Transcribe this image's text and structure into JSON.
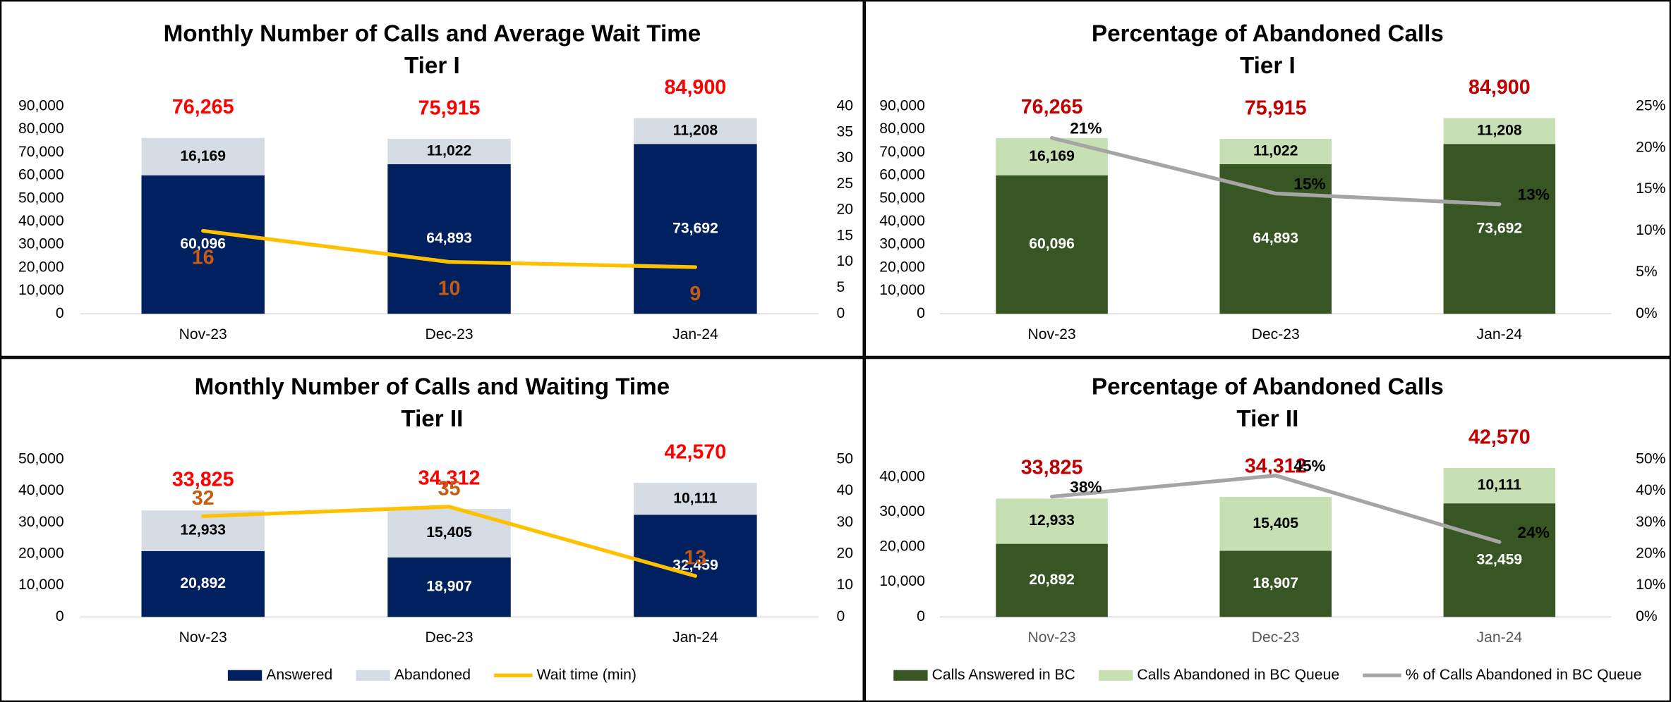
{
  "chart_data": [
    {
      "type": "bar",
      "stacked": true,
      "title": "Monthly Number of Calls and Average Wait Time",
      "subtitle": "Tier I",
      "categories": [
        "Nov-23",
        "Dec-23",
        "Jan-24"
      ],
      "series": [
        {
          "name": "Answered",
          "type": "bar",
          "color": "#002060",
          "label_color": "#ffffff",
          "values": [
            60096,
            64893,
            73692
          ],
          "value_labels": [
            "60,096",
            "64,893",
            "73,692"
          ]
        },
        {
          "name": "Abandoned",
          "type": "bar",
          "color": "#d6dce4",
          "label_color": "#000000",
          "values": [
            16169,
            11022,
            11208
          ],
          "value_labels": [
            "16,169",
            "11,022",
            "11,208"
          ]
        },
        {
          "name": "Wait time (min)",
          "type": "line",
          "axis": "y2",
          "color": "#ffc000",
          "label_color": "#c55a11",
          "values": [
            16,
            10,
            9
          ]
        }
      ],
      "totals": {
        "values": [
          76265,
          75915,
          84900
        ],
        "value_labels": [
          "76,265",
          "75,915",
          "84,900"
        ],
        "color": "#ff0000"
      },
      "ylim": [
        0,
        90000
      ],
      "yticks": [
        0,
        {
          "value": 10000,
          "label": "10,000"
        },
        {
          "value": 20000,
          "label": "20,000"
        },
        {
          "value": 30000,
          "label": "30,000"
        },
        {
          "value": 40000,
          "label": "40,000"
        },
        {
          "value": 50000,
          "label": "50,000"
        },
        {
          "value": 60000,
          "label": "60,000"
        },
        {
          "value": 70000,
          "label": "70,000"
        },
        {
          "value": 80000,
          "label": "80,000"
        },
        {
          "value": 90000,
          "label": "90,000"
        }
      ],
      "y2lim": [
        0,
        40
      ],
      "y2ticks": [
        0,
        5,
        10,
        15,
        20,
        25,
        30,
        35,
        40
      ],
      "legend": false
    },
    {
      "type": "bar",
      "stacked": true,
      "title": "Percentage of Abandoned Calls",
      "subtitle": "Tier I",
      "categories": [
        "Nov-23",
        "Dec-23",
        "Jan-24"
      ],
      "series": [
        {
          "name": "Calls Answered in BC",
          "type": "bar",
          "color": "#375623",
          "label_color": "#ffffff",
          "values": [
            60096,
            64893,
            73692
          ],
          "value_labels": [
            "60,096",
            "64,893",
            "73,692"
          ]
        },
        {
          "name": "Calls Abandoned in BC Queue",
          "type": "bar",
          "color": "#c6e0b4",
          "label_color": "#000000",
          "values": [
            16169,
            11022,
            11208
          ],
          "value_labels": [
            "16,169",
            "11,022",
            "11,208"
          ]
        },
        {
          "name": "% of Calls Abandoned in BC Queue",
          "type": "line",
          "axis": "y2",
          "color": "#a5a5a5",
          "label_color": "#000000",
          "values": [
            21.2,
            14.5,
            13.2
          ],
          "value_labels": [
            "21%",
            "15%",
            "13%"
          ]
        }
      ],
      "totals": {
        "values": [
          76265,
          75915,
          84900
        ],
        "value_labels": [
          "76,265",
          "75,915",
          "84,900"
        ],
        "color": "#c00000"
      },
      "ylim": [
        0,
        90000
      ],
      "yticks": [
        0,
        {
          "value": 10000,
          "label": "10,000"
        },
        {
          "value": 20000,
          "label": "20,000"
        },
        {
          "value": 30000,
          "label": "30,000"
        },
        {
          "value": 40000,
          "label": "40,000"
        },
        {
          "value": 50000,
          "label": "50,000"
        },
        {
          "value": 60000,
          "label": "60,000"
        },
        {
          "value": 70000,
          "label": "70,000"
        },
        {
          "value": 80000,
          "label": "80,000"
        },
        {
          "value": 90000,
          "label": "90,000"
        }
      ],
      "y2lim": [
        0,
        25
      ],
      "y2ticks": [
        {
          "value": 0,
          "label": "0%"
        },
        {
          "value": 5,
          "label": "5%"
        },
        {
          "value": 10,
          "label": "10%"
        },
        {
          "value": 15,
          "label": "15%"
        },
        {
          "value": 20,
          "label": "20%"
        },
        {
          "value": 25,
          "label": "25%"
        }
      ],
      "legend": false
    },
    {
      "type": "bar",
      "stacked": true,
      "title": "Monthly Number of Calls and Waiting Time",
      "subtitle": "Tier II",
      "categories": [
        "Nov-23",
        "Dec-23",
        "Jan-24"
      ],
      "series": [
        {
          "name": "Answered",
          "type": "bar",
          "color": "#002060",
          "label_color": "#ffffff",
          "values": [
            20892,
            18907,
            32459
          ],
          "value_labels": [
            "20,892",
            "18,907",
            "32,459"
          ]
        },
        {
          "name": "Abandoned",
          "type": "bar",
          "color": "#d6dce4",
          "label_color": "#000000",
          "values": [
            12933,
            15405,
            10111
          ],
          "value_labels": [
            "12,933",
            "15,405",
            "10,111"
          ]
        },
        {
          "name": "Wait time (min)",
          "type": "line",
          "axis": "y2",
          "color": "#ffc000",
          "label_color": "#c55a11",
          "values": [
            32,
            35,
            13
          ]
        }
      ],
      "totals": {
        "values": [
          33825,
          34312,
          42570
        ],
        "value_labels": [
          "33,825",
          "34,312",
          "42,570"
        ],
        "color": "#ff0000"
      },
      "ylim": [
        0,
        50000
      ],
      "yticks": [
        0,
        {
          "value": 10000,
          "label": "10,000"
        },
        {
          "value": 20000,
          "label": "20,000"
        },
        {
          "value": 30000,
          "label": "30,000"
        },
        {
          "value": 40000,
          "label": "40,000"
        },
        {
          "value": 50000,
          "label": "50,000"
        }
      ],
      "y2lim": [
        0,
        50
      ],
      "y2ticks": [
        0,
        10,
        20,
        30,
        40,
        50
      ],
      "legend": true
    },
    {
      "type": "bar",
      "stacked": true,
      "title": "Percentage of Abandoned Calls",
      "subtitle": "Tier II",
      "categories": [
        "Nov-23",
        "Dec-23",
        "Jan-24"
      ],
      "series": [
        {
          "name": "Calls Answered in BC",
          "type": "bar",
          "color": "#375623",
          "label_color": "#ffffff",
          "values": [
            20892,
            18907,
            32459
          ],
          "value_labels": [
            "20,892",
            "18,907",
            "32,459"
          ]
        },
        {
          "name": "Calls Abandoned in BC Queue",
          "type": "bar",
          "color": "#c6e0b4",
          "label_color": "#000000",
          "values": [
            12933,
            15405,
            10111
          ],
          "value_labels": [
            "12,933",
            "15,405",
            "10,111"
          ]
        },
        {
          "name": "% of Calls Abandoned in BC Queue",
          "type": "line",
          "axis": "y2",
          "color": "#a5a5a5",
          "label_color": "#000000",
          "values": [
            38.2,
            44.9,
            23.8
          ],
          "value_labels": [
            "38%",
            "45%",
            "24%"
          ]
        }
      ],
      "totals": {
        "values": [
          33825,
          34312,
          42570
        ],
        "value_labels": [
          "33,825",
          "34,312",
          "42,570"
        ],
        "color": "#c00000"
      },
      "ylim": [
        0,
        45000
      ],
      "yticks": [
        0,
        {
          "value": 10000,
          "label": "10,000"
        },
        {
          "value": 20000,
          "label": "20,000"
        },
        {
          "value": 30000,
          "label": "30,000"
        },
        {
          "value": 40000,
          "label": "40,000"
        }
      ],
      "y2lim": [
        0,
        50
      ],
      "y2ticks": [
        {
          "value": 0,
          "label": "0%"
        },
        {
          "value": 10,
          "label": "10%"
        },
        {
          "value": 20,
          "label": "20%"
        },
        {
          "value": 30,
          "label": "30%"
        },
        {
          "value": 40,
          "label": "40%"
        },
        {
          "value": 50,
          "label": "50%"
        }
      ],
      "legend": true
    }
  ]
}
